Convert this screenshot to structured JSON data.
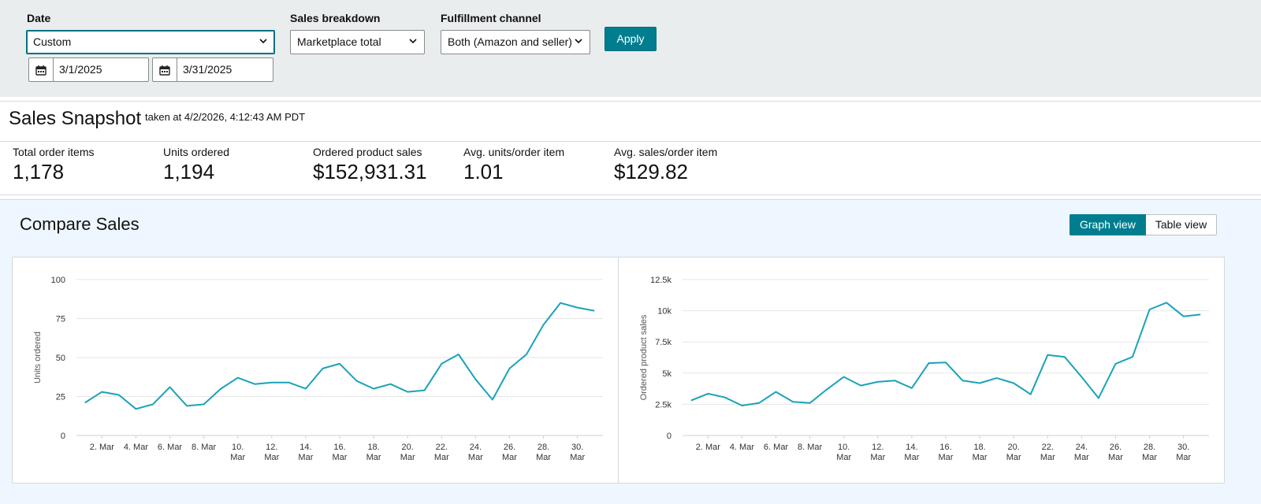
{
  "filters": {
    "date": {
      "label": "Date",
      "value": "Custom",
      "start_date": "3/1/2025",
      "end_date": "3/31/2025"
    },
    "sales_breakdown": {
      "label": "Sales breakdown",
      "value": "Marketplace total"
    },
    "fulfillment_channel": {
      "label": "Fulfillment channel",
      "value": "Both (Amazon and seller)"
    },
    "apply_label": "Apply"
  },
  "snapshot": {
    "title": "Sales Snapshot",
    "taken": "taken at 4/2/2026, 4:12:43 AM PDT",
    "metrics": [
      {
        "label": "Total order items",
        "value": "1,178"
      },
      {
        "label": "Units ordered",
        "value": "1,194"
      },
      {
        "label": "Ordered product sales",
        "value": "$152,931.31"
      },
      {
        "label": "Avg. units/order item",
        "value": "1.01"
      },
      {
        "label": "Avg. sales/order item",
        "value": "$129.82"
      }
    ]
  },
  "compare": {
    "title": "Compare Sales",
    "graph_view_label": "Graph view",
    "table_view_label": "Table view"
  },
  "colors": {
    "accent": "#007e90",
    "line": "#1aa3b8",
    "grid": "#e6e6e6"
  },
  "chart_data": [
    {
      "type": "line",
      "ylabel": "Units ordered",
      "xlabel": "",
      "ylim": [
        0,
        100
      ],
      "yticks": [
        0,
        25,
        50,
        75,
        100
      ],
      "ytick_labels": [
        "0",
        "25",
        "50",
        "75",
        "100"
      ],
      "grid": true,
      "x_tick_labels": [
        [
          "2. Mar"
        ],
        [
          "4. Mar"
        ],
        [
          "6. Mar"
        ],
        [
          "8. Mar"
        ],
        [
          "10.",
          "Mar"
        ],
        [
          "12.",
          "Mar"
        ],
        [
          "14.",
          "Mar"
        ],
        [
          "16.",
          "Mar"
        ],
        [
          "18.",
          "Mar"
        ],
        [
          "20.",
          "Mar"
        ],
        [
          "22.",
          "Mar"
        ],
        [
          "24.",
          "Mar"
        ],
        [
          "26.",
          "Mar"
        ],
        [
          "28.",
          "Mar"
        ],
        [
          "30.",
          "Mar"
        ]
      ],
      "x": [
        1,
        2,
        3,
        4,
        5,
        6,
        7,
        8,
        9,
        10,
        11,
        12,
        13,
        14,
        15,
        16,
        17,
        18,
        19,
        20,
        21,
        22,
        23,
        24,
        25,
        26,
        27,
        28,
        29,
        30,
        31
      ],
      "series": [
        {
          "values": [
            21,
            28,
            26,
            17,
            20,
            31,
            19,
            20,
            30,
            37,
            33,
            34,
            34,
            30,
            43,
            46,
            35,
            30,
            33,
            28,
            29,
            46,
            52,
            36,
            23,
            43,
            52,
            71,
            85,
            82,
            80
          ]
        }
      ]
    },
    {
      "type": "line",
      "ylabel": "Ordered product sales",
      "xlabel": "",
      "ylim": [
        0,
        12500
      ],
      "yticks": [
        0,
        2500,
        5000,
        7500,
        10000,
        12500
      ],
      "ytick_labels": [
        "0",
        "2.5k",
        "5k",
        "7.5k",
        "10k",
        "12.5k"
      ],
      "grid": true,
      "x_tick_labels": [
        [
          "2. Mar"
        ],
        [
          "4. Mar"
        ],
        [
          "6. Mar"
        ],
        [
          "8. Mar"
        ],
        [
          "10.",
          "Mar"
        ],
        [
          "12.",
          "Mar"
        ],
        [
          "14.",
          "Mar"
        ],
        [
          "16.",
          "Mar"
        ],
        [
          "18.",
          "Mar"
        ],
        [
          "20.",
          "Mar"
        ],
        [
          "22.",
          "Mar"
        ],
        [
          "24.",
          "Mar"
        ],
        [
          "26.",
          "Mar"
        ],
        [
          "28.",
          "Mar"
        ],
        [
          "30.",
          "Mar"
        ]
      ],
      "x": [
        1,
        2,
        3,
        4,
        5,
        6,
        7,
        8,
        9,
        10,
        11,
        12,
        13,
        14,
        15,
        16,
        17,
        18,
        19,
        20,
        21,
        22,
        23,
        24,
        25,
        26,
        27,
        28,
        29,
        30,
        31
      ],
      "series": [
        {
          "values": [
            2800,
            3350,
            3050,
            2400,
            2600,
            3500,
            2700,
            2600,
            3700,
            4700,
            4000,
            4300,
            4400,
            3800,
            5800,
            5850,
            4400,
            4200,
            4600,
            4200,
            3300,
            6450,
            6300,
            4700,
            3000,
            5750,
            6300,
            10100,
            10650,
            9550,
            9700
          ]
        }
      ]
    }
  ]
}
